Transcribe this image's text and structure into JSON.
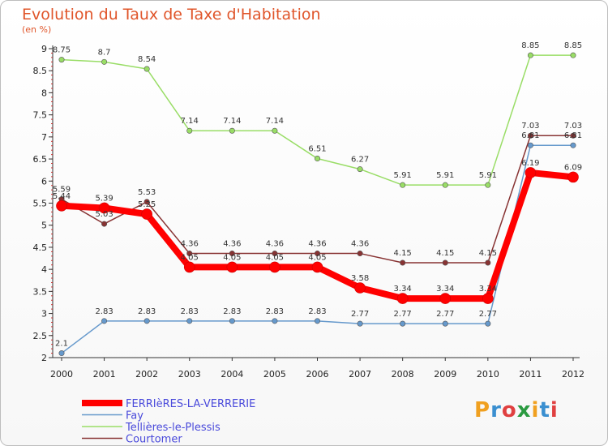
{
  "header": {
    "title": "Evolution du Taux de Taxe d'Habitation",
    "subtitle": "(en %)"
  },
  "logo": {
    "text": "Proxiti",
    "colors": [
      "#f0a020",
      "#3a8fd0",
      "#e04040",
      "#2a9a40",
      "#f0a020",
      "#3a8fd0",
      "#e04040"
    ]
  },
  "chart_data": {
    "type": "line",
    "x": [
      "2000",
      "2001",
      "2002",
      "2003",
      "2004",
      "2005",
      "2006",
      "2007",
      "2008",
      "2009",
      "2010",
      "2011",
      "2012"
    ],
    "ylim": [
      2,
      9
    ],
    "yticks": [
      "2",
      "2.5",
      "3",
      "3.5",
      "4",
      "4.5",
      "5",
      "5.5",
      "6",
      "6.5",
      "7",
      "7.5",
      "8",
      "8.5",
      "9"
    ],
    "grid": false,
    "legend_position": "bottom-left",
    "series": [
      {
        "name": "FERRIèRES-LA-VERRERIE",
        "color": "#ff0000",
        "width": 8,
        "values": [
          5.44,
          5.39,
          5.25,
          4.05,
          4.05,
          4.05,
          4.05,
          3.58,
          3.34,
          3.34,
          3.34,
          6.19,
          6.09
        ],
        "labels": [
          "5.44",
          "5.39",
          "5.25",
          "4.05",
          "4.05",
          "4.05",
          "4.05",
          "3.58",
          "3.34",
          "3.34",
          "3.34",
          "6.19",
          "6.09"
        ]
      },
      {
        "name": "Fay",
        "color": "#6699cc",
        "width": 1.5,
        "values": [
          2.1,
          2.83,
          2.83,
          2.83,
          2.83,
          2.83,
          2.83,
          2.77,
          2.77,
          2.77,
          2.77,
          6.81,
          6.81
        ],
        "labels": [
          "2.1",
          "2.83",
          "2.83",
          "2.83",
          "2.83",
          "2.83",
          "2.83",
          "2.77",
          "2.77",
          "2.77",
          "2.77",
          "6.81",
          "6.81"
        ]
      },
      {
        "name": "Tellières-le-Plessis",
        "color": "#99dd66",
        "width": 1.5,
        "values": [
          8.75,
          8.7,
          8.54,
          7.14,
          7.14,
          7.14,
          6.51,
          6.27,
          5.91,
          5.91,
          5.91,
          8.85,
          8.85
        ],
        "labels": [
          "8.75",
          "8.7",
          "8.54",
          "7.14",
          "7.14",
          "7.14",
          "6.51",
          "6.27",
          "5.91",
          "5.91",
          "5.91",
          "8.85",
          "8.85"
        ]
      },
      {
        "name": "Courtomer",
        "color": "#883333",
        "width": 1.5,
        "values": [
          5.59,
          5.03,
          5.53,
          4.36,
          4.36,
          4.36,
          4.36,
          4.36,
          4.15,
          4.15,
          4.15,
          7.03,
          7.03
        ],
        "labels": [
          "5.59",
          "5.03",
          "5.53",
          "4.36",
          "4.36",
          "4.36",
          "4.36",
          "4.36",
          "4.15",
          "4.15",
          "4.15",
          "7.03",
          "7.03"
        ]
      }
    ]
  }
}
